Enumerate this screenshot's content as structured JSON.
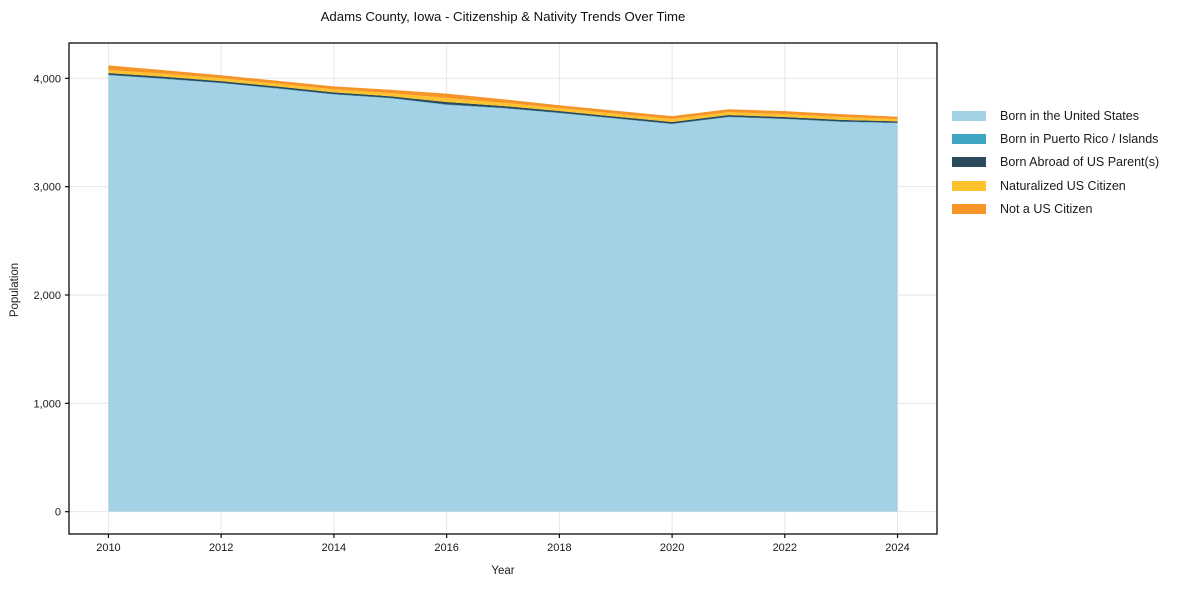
{
  "chart_data": {
    "type": "area",
    "stacked": true,
    "title": "Adams County, Iowa - Citizenship & Nativity Trends Over Time",
    "xlabel": "Year",
    "ylabel": "Population",
    "x": [
      2010,
      2011,
      2012,
      2013,
      2014,
      2015,
      2016,
      2017,
      2018,
      2019,
      2020,
      2021,
      2022,
      2023,
      2024
    ],
    "series": [
      {
        "name": "Born in the United States",
        "color": "#a3d1e6",
        "values": [
          4028,
          3993,
          3954,
          3904,
          3850,
          3815,
          3754,
          3723,
          3678,
          3627,
          3577,
          3641,
          3623,
          3597,
          3586
        ]
      },
      {
        "name": "Born in Puerto Rico / Islands",
        "color": "#3fa5c2",
        "values": [
          4,
          4,
          4,
          4,
          4,
          4,
          5,
          4,
          4,
          4,
          4,
          4,
          4,
          4,
          3
        ]
      },
      {
        "name": "Born Abroad of US Parent(s)",
        "color": "#2b4a5c",
        "values": [
          17,
          17,
          16,
          16,
          16,
          16,
          22,
          18,
          16,
          16,
          16,
          16,
          16,
          16,
          14
        ]
      },
      {
        "name": "Naturalized US Citizen",
        "color": "#fcc32f",
        "values": [
          28,
          28,
          27,
          27,
          28,
          29,
          37,
          30,
          27,
          27,
          27,
          27,
          27,
          26,
          21
        ]
      },
      {
        "name": "Not a US Citizen",
        "color": "#f79428",
        "values": [
          42,
          33,
          27,
          26,
          28,
          30,
          41,
          32,
          27,
          27,
          27,
          27,
          27,
          26,
          21
        ]
      }
    ],
    "stack_totals": [
      4119,
      4075,
      4028,
      3977,
      3926,
      3894,
      3859,
      3807,
      3752,
      3701,
      3651,
      3715,
      3697,
      3669,
      3645
    ],
    "xticks": [
      2010,
      2012,
      2014,
      2016,
      2018,
      2020,
      2022,
      2024
    ],
    "yticks": [
      0,
      1000,
      2000,
      3000,
      4000
    ],
    "ytick_labels": [
      "0",
      "1,000",
      "2,000",
      "3,000",
      "4,000"
    ],
    "xlim": [
      2009.3,
      2024.7
    ],
    "ylim": [
      -206,
      4326
    ],
    "grid": true,
    "grid_color": "#e7e7e7",
    "spine_color": "#0a0a0a",
    "tick_text_color": "#1a1a1a",
    "legend_position": "right-outside"
  }
}
